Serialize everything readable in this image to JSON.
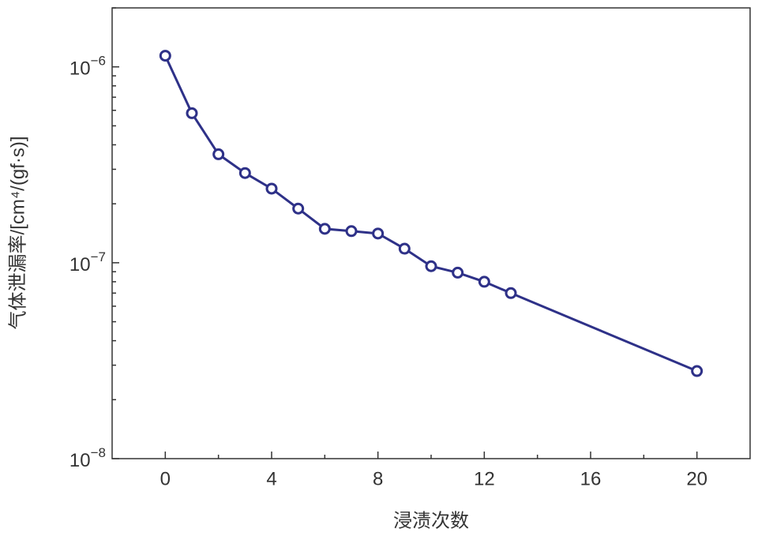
{
  "chart_data": {
    "type": "line",
    "title": null,
    "x_label": "浸渍次数",
    "y_label": "气体泄漏率/[cm⁴/(gf·s)]",
    "x": [
      0,
      1,
      2,
      3,
      4,
      5,
      6,
      7,
      8,
      9,
      10,
      11,
      12,
      13,
      20
    ],
    "series": [
      {
        "name": null,
        "color": "#2e3188",
        "values": [
          1.14e-06,
          5.8e-07,
          3.58e-07,
          2.87e-07,
          2.39e-07,
          1.89e-07,
          1.49e-07,
          1.45e-07,
          1.41e-07,
          1.18e-07,
          9.6e-08,
          8.9e-08,
          8e-08,
          7e-08,
          2.8e-08
        ]
      }
    ],
    "xlim": [
      -2,
      22
    ],
    "xticks": [
      0,
      4,
      8,
      12,
      16,
      20
    ],
    "x_minor_ticks": [
      2,
      6,
      10,
      14,
      18
    ],
    "ylim": [
      1e-08,
      2e-06
    ],
    "y_log": true,
    "yticks": [
      {
        "value": 1e-08,
        "label": "10−8"
      },
      {
        "value": 1e-07,
        "label": "10−7"
      },
      {
        "value": 1e-06,
        "label": "10−6"
      }
    ],
    "y_minor_ticks": [
      2e-08,
      3e-08,
      4e-08,
      5e-08,
      6e-08,
      7e-08,
      8e-08,
      9e-08,
      2e-07,
      3e-07,
      4e-07,
      5e-07,
      6e-07,
      7e-07,
      8e-07,
      9e-07,
      2e-06
    ],
    "grid": false
  }
}
